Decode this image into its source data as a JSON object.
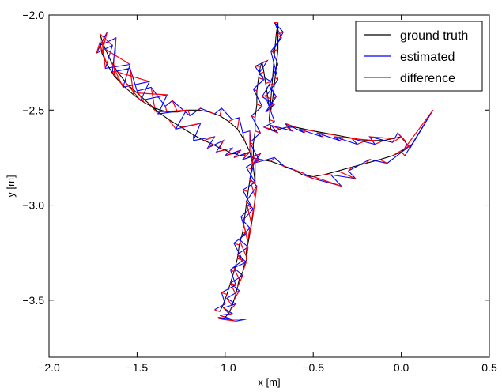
{
  "chart_data": {
    "type": "line",
    "title": "",
    "xlabel": "x [m]",
    "ylabel": "y [m]",
    "xlim": [
      -2.0,
      0.5
    ],
    "ylim": [
      -3.8,
      -2.0
    ],
    "xticks": [
      -2.0,
      -1.5,
      -1.0,
      -0.5,
      0.0,
      0.5
    ],
    "xtick_labels": [
      "−2.0",
      "−1.5",
      "−1.0",
      "−0.5",
      "0.0",
      "0.5"
    ],
    "yticks": [
      -2.0,
      -2.5,
      -3.0,
      -3.5
    ],
    "ytick_labels": [
      "−2.0",
      "−2.5",
      "−3.0",
      "−3.5"
    ],
    "grid": false,
    "legend_position": "top-right",
    "series": [
      {
        "name": "ground truth",
        "color": "#000000",
        "x": [
          -1.03,
          -1.01,
          -0.99,
          -0.97,
          -0.95,
          -0.93,
          -0.92,
          -0.9,
          -0.89,
          -0.88,
          -0.87,
          -0.86,
          -0.85,
          -0.84,
          -0.84,
          -0.83,
          -0.83,
          -0.82,
          -0.82,
          -0.81,
          -0.8,
          -0.79,
          -0.78,
          -0.77,
          -0.76,
          -0.75,
          -0.74,
          -0.73,
          -0.72,
          -0.71,
          -0.7,
          -0.7,
          -0.7,
          -0.71,
          -0.72,
          -0.73,
          -0.74,
          -0.75,
          -0.74,
          -0.72,
          -0.69,
          -0.65,
          -0.6,
          -0.55,
          -0.5,
          -0.44,
          -0.38,
          -0.32,
          -0.26,
          -0.2,
          -0.15,
          -0.1,
          -0.05,
          0.0,
          0.02,
          0.03,
          0.02,
          0.0,
          -0.05,
          -0.12,
          -0.2,
          -0.28,
          -0.36,
          -0.44,
          -0.5,
          -0.56,
          -0.62,
          -0.68,
          -0.74,
          -0.8,
          -0.85,
          -0.88,
          -0.9,
          -0.92,
          -0.94,
          -0.96,
          -0.98,
          -1.0,
          -1.03,
          -1.07,
          -1.12,
          -1.18,
          -1.25,
          -1.32,
          -1.38,
          -1.44,
          -1.5,
          -1.56,
          -1.61,
          -1.65,
          -1.68,
          -1.7,
          -1.71,
          -1.71,
          -1.7,
          -1.67,
          -1.63,
          -1.58,
          -1.52,
          -1.46,
          -1.4,
          -1.33,
          -1.27,
          -1.21,
          -1.15,
          -1.09,
          -1.03,
          -0.98,
          -0.93,
          -0.89,
          -0.86,
          -0.84,
          -0.83,
          -0.83,
          -0.84,
          -0.85,
          -0.86,
          -0.87,
          -0.88,
          -0.88,
          -0.88,
          -0.89,
          -0.9,
          -0.92,
          -0.93,
          -0.94,
          -0.95,
          -0.96,
          -0.97,
          -0.98,
          -0.99,
          -1.0,
          -1.01,
          -1.02,
          -1.02,
          -1.02
        ],
        "y": [
          -3.56,
          -3.52,
          -3.47,
          -3.41,
          -3.35,
          -3.28,
          -3.21,
          -3.14,
          -3.07,
          -3.0,
          -2.93,
          -2.87,
          -2.81,
          -2.75,
          -2.68,
          -2.61,
          -2.54,
          -2.47,
          -2.4,
          -2.33,
          -2.27,
          -2.25,
          -2.3,
          -2.36,
          -2.42,
          -2.48,
          -2.5,
          -2.44,
          -2.36,
          -2.27,
          -2.18,
          -2.1,
          -2.04,
          -2.1,
          -2.2,
          -2.32,
          -2.44,
          -2.55,
          -2.6,
          -2.61,
          -2.6,
          -2.59,
          -2.59,
          -2.6,
          -2.61,
          -2.62,
          -2.63,
          -2.64,
          -2.65,
          -2.66,
          -2.66,
          -2.66,
          -2.65,
          -2.64,
          -2.66,
          -2.68,
          -2.7,
          -2.72,
          -2.74,
          -2.76,
          -2.78,
          -2.8,
          -2.82,
          -2.84,
          -2.85,
          -2.84,
          -2.81,
          -2.79,
          -2.77,
          -2.76,
          -2.75,
          -2.74,
          -2.74,
          -2.74,
          -2.73,
          -2.73,
          -2.72,
          -2.71,
          -2.7,
          -2.68,
          -2.66,
          -2.63,
          -2.59,
          -2.55,
          -2.51,
          -2.46,
          -2.41,
          -2.36,
          -2.3,
          -2.24,
          -2.18,
          -2.13,
          -2.1,
          -2.14,
          -2.2,
          -2.26,
          -2.32,
          -2.37,
          -2.42,
          -2.46,
          -2.49,
          -2.51,
          -2.51,
          -2.5,
          -2.5,
          -2.51,
          -2.53,
          -2.56,
          -2.6,
          -2.66,
          -2.72,
          -2.8,
          -2.88,
          -2.96,
          -3.04,
          -3.1,
          -3.15,
          -3.2,
          -3.24,
          -3.27,
          -3.29,
          -3.31,
          -3.35,
          -3.39,
          -3.43,
          -3.47,
          -3.5,
          -3.53,
          -3.55,
          -3.57,
          -3.58,
          -3.59,
          -3.6,
          -3.6,
          -3.6,
          -3.6
        ]
      },
      {
        "name": "estimated",
        "color": "#0000ff",
        "x": [
          -1.06,
          -1.0,
          -1.02,
          -0.94,
          -0.97,
          -0.9,
          -0.95,
          -0.88,
          -0.91,
          -0.85,
          -0.9,
          -0.83,
          -0.88,
          -0.81,
          -0.86,
          -0.8,
          -0.85,
          -0.79,
          -0.84,
          -0.78,
          -0.83,
          -0.76,
          -0.81,
          -0.74,
          -0.79,
          -0.72,
          -0.77,
          -0.71,
          -0.75,
          -0.7,
          -0.73,
          -0.67,
          -0.72,
          -0.68,
          -0.74,
          -0.7,
          -0.77,
          -0.72,
          -0.78,
          -0.7,
          -0.74,
          -0.62,
          -0.66,
          -0.55,
          -0.58,
          -0.45,
          -0.48,
          -0.35,
          -0.38,
          -0.25,
          -0.28,
          -0.15,
          -0.18,
          -0.05,
          -0.02,
          0.05,
          0.18,
          0.02,
          0.06,
          -0.08,
          -0.18,
          -0.3,
          -0.26,
          -0.4,
          -0.34,
          -0.5,
          -0.56,
          -0.66,
          -0.72,
          -0.84,
          -0.8,
          -0.9,
          -0.86,
          -0.95,
          -0.91,
          -1.0,
          -0.96,
          -1.05,
          -1.01,
          -1.1,
          -1.06,
          -1.18,
          -1.14,
          -1.28,
          -1.22,
          -1.38,
          -1.33,
          -1.48,
          -1.43,
          -1.58,
          -1.54,
          -1.68,
          -1.64,
          -1.73,
          -1.67,
          -1.71,
          -1.62,
          -1.64,
          -1.54,
          -1.5,
          -1.42,
          -1.34,
          -1.3,
          -1.2,
          -1.14,
          -1.06,
          -1.02,
          -0.96,
          -0.92,
          -0.9,
          -0.86,
          -0.85,
          -0.83,
          -0.86,
          -0.82,
          -0.88,
          -0.84,
          -0.9,
          -0.86,
          -0.92,
          -0.87,
          -0.93,
          -0.88,
          -0.95,
          -0.9,
          -0.97,
          -0.92,
          -0.99,
          -0.94,
          -1.01,
          -0.96,
          -1.03,
          -0.96,
          -1.04,
          -0.94,
          -0.88
        ],
        "y": [
          -3.55,
          -3.52,
          -3.46,
          -3.42,
          -3.34,
          -3.29,
          -3.2,
          -3.15,
          -3.06,
          -3.01,
          -2.92,
          -2.88,
          -2.8,
          -2.76,
          -2.67,
          -2.62,
          -2.53,
          -2.48,
          -2.39,
          -2.34,
          -2.27,
          -2.24,
          -2.31,
          -2.35,
          -2.43,
          -2.47,
          -2.51,
          -2.43,
          -2.37,
          -2.26,
          -2.19,
          -2.09,
          -2.04,
          -2.12,
          -2.19,
          -2.34,
          -2.43,
          -2.56,
          -2.59,
          -2.62,
          -2.58,
          -2.61,
          -2.57,
          -2.62,
          -2.6,
          -2.64,
          -2.62,
          -2.66,
          -2.64,
          -2.68,
          -2.65,
          -2.68,
          -2.64,
          -2.67,
          -2.62,
          -2.7,
          -2.5,
          -2.74,
          -2.68,
          -2.78,
          -2.76,
          -2.82,
          -2.86,
          -2.84,
          -2.9,
          -2.86,
          -2.83,
          -2.8,
          -2.75,
          -2.78,
          -2.73,
          -2.76,
          -2.72,
          -2.75,
          -2.71,
          -2.74,
          -2.7,
          -2.72,
          -2.66,
          -2.7,
          -2.64,
          -2.66,
          -2.57,
          -2.6,
          -2.5,
          -2.52,
          -2.42,
          -2.45,
          -2.35,
          -2.38,
          -2.26,
          -2.28,
          -2.16,
          -2.2,
          -2.09,
          -2.16,
          -2.12,
          -2.3,
          -2.28,
          -2.4,
          -2.38,
          -2.48,
          -2.45,
          -2.53,
          -2.49,
          -2.52,
          -2.49,
          -2.55,
          -2.54,
          -2.62,
          -2.61,
          -2.74,
          -2.76,
          -2.86,
          -2.9,
          -2.98,
          -3.02,
          -3.08,
          -3.12,
          -3.18,
          -3.22,
          -3.26,
          -3.3,
          -3.33,
          -3.37,
          -3.41,
          -3.45,
          -3.49,
          -3.52,
          -3.54,
          -3.57,
          -3.58,
          -3.6,
          -3.59,
          -3.61,
          -3.6
        ]
      }
    ],
    "difference_label": "difference",
    "difference_color": "#ff0000"
  }
}
